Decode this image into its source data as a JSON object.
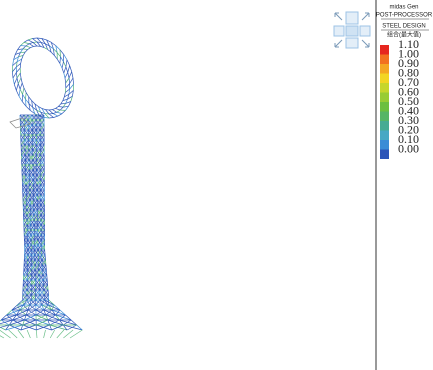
{
  "legend": {
    "product": "midas Gen",
    "module": "POST-PROCESSOR",
    "result": "STEEL DESIGN",
    "case": "组合(最大值)",
    "labels": [
      "1.10",
      "1.00",
      "0.90",
      "0.80",
      "0.70",
      "0.60",
      "0.50",
      "0.40",
      "0.30",
      "0.20",
      "0.10",
      "0.00"
    ],
    "colors": [
      "#e6261f",
      "#f2711f",
      "#f4a722",
      "#f2d523",
      "#c6d62c",
      "#98cc34",
      "#6cbf3f",
      "#56b566",
      "#47ab93",
      "#47a8c4",
      "#3a8cd6",
      "#2b55b8"
    ]
  }
}
